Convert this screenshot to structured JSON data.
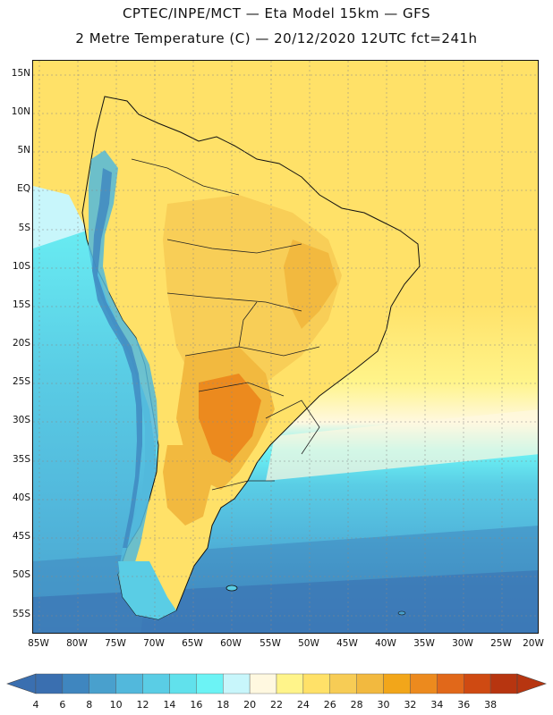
{
  "title": {
    "line1": "CPTEC/INPE/MCT —  Eta Model 15km — GFS",
    "line2": "2 Metre Temperature (C) — 20/12/2020 12UTC fct=241h"
  },
  "map": {
    "variable": "2 Metre Temperature",
    "units": "C",
    "region": "South America",
    "lat_labels": [
      "15N",
      "10N",
      "5N",
      "EQ",
      "5S",
      "10S",
      "15S",
      "20S",
      "25S",
      "30S",
      "35S",
      "40S",
      "45S",
      "50S",
      "55S"
    ],
    "lon_labels": [
      "85W",
      "80W",
      "75W",
      "70W",
      "65W",
      "60W",
      "55W",
      "50W",
      "45W",
      "40W",
      "35W",
      "30W",
      "25W",
      "20W"
    ]
  },
  "colorbar": {
    "levels": [
      "4",
      "6",
      "8",
      "10",
      "12",
      "14",
      "16",
      "18",
      "20",
      "22",
      "24",
      "26",
      "28",
      "30",
      "32",
      "34",
      "36",
      "38"
    ],
    "colors": [
      "#3a6fb0",
      "#3f86bf",
      "#49a0cd",
      "#52b8dc",
      "#5acde5",
      "#61e1ec",
      "#6cf3f5",
      "#c8f6fb",
      "#fff8e0",
      "#fff48a",
      "#ffe168",
      "#f7cc55",
      "#f2b93f",
      "#f2a61a",
      "#ec8a1e",
      "#e1681a",
      "#cf4a12",
      "#b73510"
    ],
    "low_end_color": "#3a6fb0",
    "high_end_color": "#b73510"
  },
  "colors": {
    "land_warm": "#f2b93f",
    "land_hot": "#ec8a1e",
    "ocean_warm": "#ffe168",
    "ocean_cold": "#49a0cd",
    "andes_cold": "#52b8dc",
    "coast_line": "#111111"
  }
}
